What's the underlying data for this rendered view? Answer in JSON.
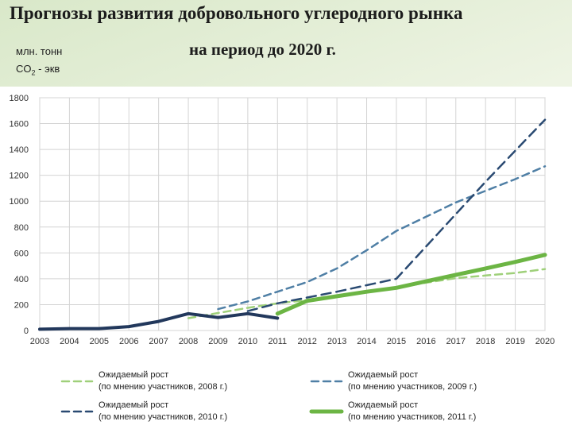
{
  "title": {
    "line1": "Прогнозы развития добровольного углеродного рынка",
    "line2": "на период до 2020 г."
  },
  "units": {
    "line1": "млн. тонн",
    "line2_prefix": "CO",
    "line2_sub": "2",
    "line2_suffix": " - экв"
  },
  "chart_data": {
    "type": "line",
    "x": [
      2003,
      2004,
      2005,
      2006,
      2007,
      2008,
      2009,
      2010,
      2011,
      2012,
      2013,
      2014,
      2015,
      2016,
      2017,
      2018,
      2019,
      2020
    ],
    "ylim": [
      0,
      1800
    ],
    "yticks": [
      0,
      200,
      400,
      600,
      800,
      1000,
      1200,
      1400,
      1600,
      1800
    ],
    "xticks": [
      "2003",
      "2004",
      "2005",
      "2006",
      "2007",
      "2008",
      "2009",
      "2010",
      "2011",
      "2012",
      "2013",
      "2014",
      "2015",
      "2016",
      "2017",
      "2018",
      "2019",
      "2020"
    ],
    "grid": true,
    "legend_position": "bottom",
    "series": [
      {
        "id": "actual",
        "style": "solid",
        "color": "#22385c",
        "x": [
          2003,
          2004,
          2005,
          2006,
          2007,
          2008,
          2009,
          2010,
          2011
        ],
        "values": [
          10,
          15,
          15,
          30,
          70,
          130,
          100,
          130,
          95
        ]
      },
      {
        "id": "forecast_2008",
        "name": "Ожидаемый рост\n(по мнению участников, 2008 г.)",
        "style": "dashed",
        "color": "#9fd07a",
        "x": [
          2008,
          2009,
          2010,
          2011,
          2012,
          2013,
          2014,
          2015,
          2016,
          2017,
          2018,
          2019,
          2020
        ],
        "values": [
          95,
          135,
          175,
          210,
          235,
          265,
          295,
          330,
          370,
          405,
          425,
          445,
          475
        ]
      },
      {
        "id": "forecast_2009",
        "name": "Ожидаемый рост\n(по мнению участников, 2009 г.)",
        "style": "dashed",
        "color": "#4f7fa5",
        "x": [
          2009,
          2010,
          2011,
          2012,
          2013,
          2014,
          2015,
          2016,
          2017,
          2018,
          2019,
          2020
        ],
        "values": [
          165,
          225,
          300,
          375,
          480,
          620,
          770,
          880,
          990,
          1080,
          1170,
          1270
        ]
      },
      {
        "id": "forecast_2010",
        "name": "Ожидаемый рост\n(по мнению участников, 2010 г.)",
        "style": "dashed",
        "color": "#2a4a72",
        "x": [
          2010,
          2011,
          2012,
          2013,
          2014,
          2015,
          2016,
          2017,
          2018,
          2019,
          2020
        ],
        "values": [
          150,
          210,
          255,
          300,
          350,
          400,
          650,
          900,
          1150,
          1390,
          1630
        ]
      },
      {
        "id": "forecast_2011",
        "name": "Ожидаемый рост\n(по мнению участников, 2011 г.)",
        "style": "solid",
        "color": "#6cb544",
        "x": [
          2011,
          2012,
          2013,
          2014,
          2015,
          2016,
          2017,
          2018,
          2019,
          2020
        ],
        "values": [
          130,
          230,
          265,
          300,
          330,
          380,
          430,
          480,
          530,
          585
        ]
      }
    ]
  }
}
